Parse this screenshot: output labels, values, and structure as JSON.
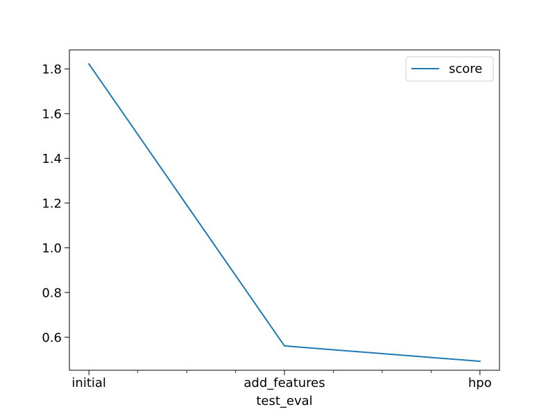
{
  "chart_data": {
    "type": "line",
    "title": "",
    "xlabel": "test_eval",
    "ylabel": "",
    "categories": [
      "initial",
      "add_features",
      "hpo"
    ],
    "series": [
      {
        "name": "score",
        "values": [
          1.822,
          0.561,
          0.492
        ],
        "color": "#1f77b4"
      }
    ],
    "ylim": [
      0.452,
      1.885
    ],
    "yticks": [
      0.6,
      0.8,
      1.0,
      1.2,
      1.4,
      1.6,
      1.8
    ],
    "ytick_labels": [
      "0.6",
      "0.8",
      "1.0",
      "1.2",
      "1.4",
      "1.6",
      "1.8"
    ],
    "minor_xticks": [
      0.25,
      0.5,
      0.75,
      1.25,
      1.5,
      1.75
    ],
    "grid": false,
    "legend_position": "top-right"
  }
}
